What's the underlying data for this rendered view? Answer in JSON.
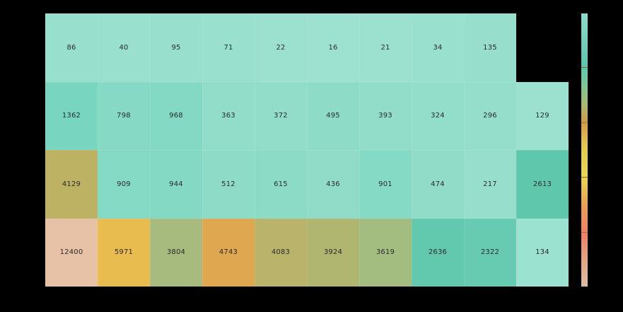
{
  "chart_data": {
    "type": "heatmap",
    "title": "",
    "background": "#000000",
    "value_text_color": "#2b2b2b",
    "grid": {
      "n_rows": 4,
      "n_cols": 10,
      "note_missing_cell": "row 0, col 9 has no data (blank)"
    },
    "rows": [
      {
        "values": [
          86,
          40,
          95,
          71,
          22,
          16,
          21,
          34,
          135,
          null
        ],
        "colors": [
          "#99dfce",
          "#9ae0cf",
          "#98dfcd",
          "#99e0ce",
          "#9ce1d0",
          "#9de2d1",
          "#9ce1d0",
          "#9ae0cf",
          "#97decc",
          null
        ]
      },
      {
        "values": [
          1362,
          798,
          968,
          363,
          372,
          495,
          393,
          324,
          296,
          129
        ],
        "colors": [
          "#78d5c0",
          "#86dac5",
          "#83d9c4",
          "#92ddca",
          "#92ddca",
          "#8edcc8",
          "#91ddca",
          "#93deca",
          "#94decb",
          "#9ce1d0"
        ]
      },
      {
        "values": [
          4129,
          909,
          944,
          512,
          615,
          436,
          901,
          474,
          217,
          2613
        ],
        "colors": [
          "#bdb164",
          "#85dac5",
          "#84d9c4",
          "#8edcc8",
          "#8cdbc7",
          "#90dcc9",
          "#85dac5",
          "#90dcc9",
          "#97dfcc",
          "#5fc8ac"
        ]
      },
      {
        "values": [
          12400,
          5971,
          3804,
          4743,
          4083,
          3924,
          3619,
          2636,
          2322,
          134
        ],
        "colors": [
          "#e7c2a7",
          "#e9bc4f",
          "#a8bb7e",
          "#dfa850",
          "#b9b36c",
          "#b0b570",
          "#a3bc7f",
          "#62c9ae",
          "#67cbb1",
          "#9ce2d0"
        ]
      }
    ],
    "colorbar": {
      "position": "right",
      "low_end": "top-teal",
      "high_end": "bottom-pale-salmon",
      "separator_color": "rgba(90,60,25,0.55)",
      "segments": [
        {
          "stops": [
            "#8edccb",
            "#5ac5ab"
          ]
        },
        {
          "stops": [
            "#5fc9ae",
            "#7fc796",
            "#a8ba70",
            "#d19a4c"
          ]
        },
        {
          "stops": [
            "#d89e4a",
            "#e3cc52",
            "#e8d94f"
          ]
        },
        {
          "stops": [
            "#e8d84f",
            "#ea9f55",
            "#ee8166"
          ]
        },
        {
          "stops": [
            "#ee7f66",
            "#e7a482",
            "#ddbfa4"
          ]
        }
      ]
    }
  }
}
